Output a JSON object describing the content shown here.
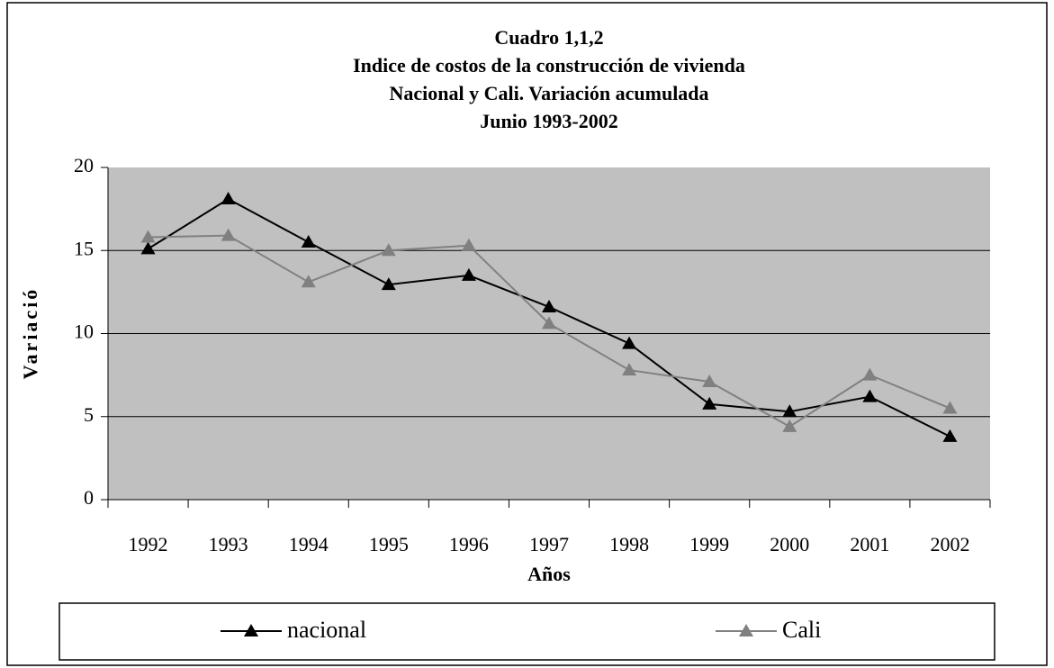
{
  "chart_data": {
    "type": "line",
    "title": [
      "Cuadro 1,1,2",
      "Indice de costos de la construcción de vivienda",
      "Nacional y Cali. Variación acumulada",
      "Junio 1993-2002"
    ],
    "x_label": "Años",
    "y_label": "Variació",
    "categories": [
      "1992",
      "1993",
      "1994",
      "1995",
      "1996",
      "1997",
      "1998",
      "1999",
      "2000",
      "2001",
      "2002"
    ],
    "series": [
      {
        "name": "nacional",
        "color": "#000000",
        "values": [
          15.1,
          18.1,
          15.5,
          12.95,
          13.5,
          11.6,
          9.4,
          5.75,
          5.3,
          6.2,
          3.8
        ]
      },
      {
        "name": "Cali",
        "color": "#808080",
        "values": [
          15.8,
          15.9,
          13.1,
          15.0,
          15.3,
          10.6,
          7.8,
          7.1,
          4.4,
          7.5,
          5.5
        ]
      }
    ],
    "ylim": [
      0,
      20
    ],
    "yticks": [
      0,
      5,
      10,
      15,
      20
    ],
    "grid": true,
    "legend": "bottom"
  }
}
